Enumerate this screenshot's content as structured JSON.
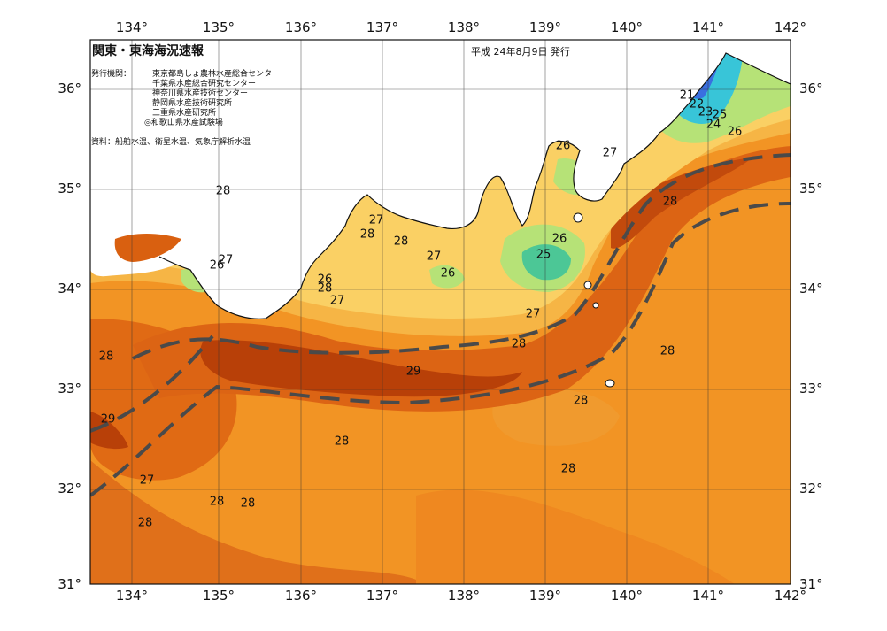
{
  "map": {
    "title": "関東・東海海況速報",
    "issue_date": "平成 24年8月9日 発行",
    "issuers_label": "発行機関：",
    "issuers": [
      "東京都島しょ農林水産総合センター",
      "千葉県水産総合研究センター",
      "神奈川県水産技術センター",
      "静岡県水産技術研究所",
      "三重県水産研究所",
      "◎和歌山県水産試験場"
    ],
    "sources": "資料：船舶水温、衛星水温、気象庁解析水温",
    "lon_ticks": [
      "134°",
      "135°",
      "136°",
      "137°",
      "138°",
      "139°",
      "140°",
      "141°",
      "142°"
    ],
    "lat_ticks": [
      "36°",
      "35°",
      "34°",
      "33°",
      "32°",
      "31°"
    ],
    "contour_labels": [
      "28",
      "26",
      "27",
      "28",
      "27",
      "28",
      "27",
      "26",
      "26",
      "26",
      "27",
      "25",
      "26",
      "27",
      "27",
      "28",
      "21",
      "22",
      "23",
      "24",
      "25",
      "26",
      "28",
      "28",
      "29",
      "28",
      "28",
      "29",
      "28",
      "28",
      "28",
      "27",
      "28",
      "28",
      "28"
    ],
    "colors": {
      "warm_29": "#b84008",
      "warm_28": "#d96010",
      "warm_27": "#f08c1c",
      "warm_26": "#f6b545",
      "sst_25": "#fae274",
      "sst_24": "#b6e277",
      "sst_23": "#4cc796",
      "cold_22": "#38c5d8",
      "cold_21": "#3a6fe0",
      "land": "#ffffff",
      "kuroshio_axis": "#4a4a4a"
    }
  }
}
